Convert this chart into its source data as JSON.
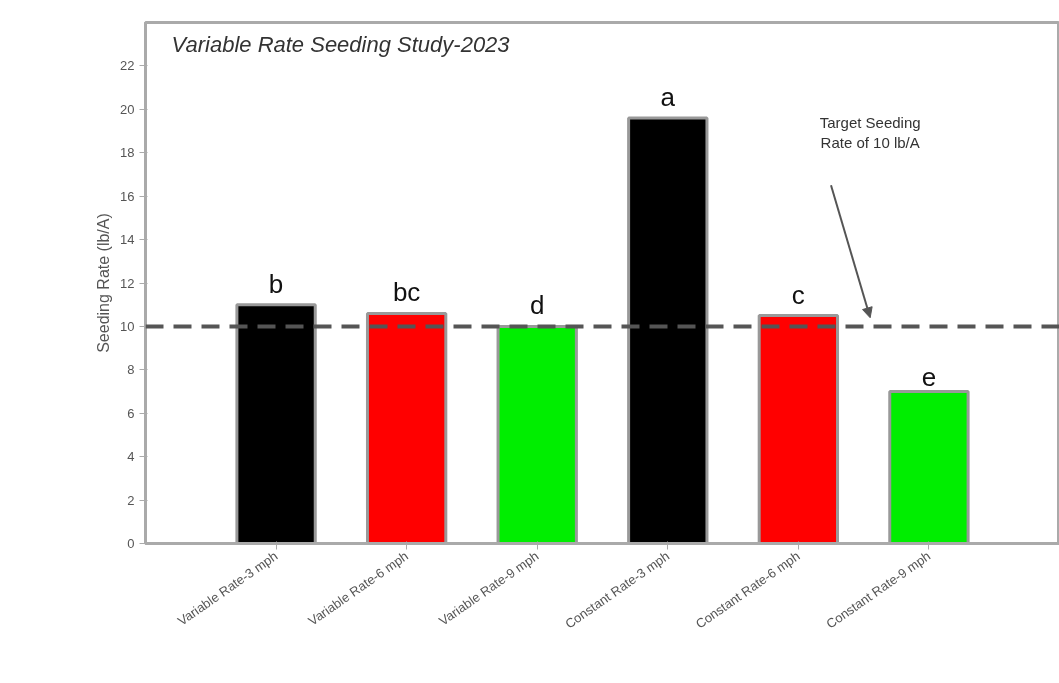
{
  "chart_data": {
    "type": "bar",
    "title": "Variable Rate Seeding Study-2023",
    "ylabel": "Seeding Rate (lb/A)",
    "categories": [
      "Variable Rate-3 mph",
      "Variable Rate-6 mph",
      "Variable Rate-9 mph",
      "Constant Rate-3 mph",
      "Constant Rate-6 mph",
      "Constant Rate-9 mph"
    ],
    "values": [
      11.0,
      10.6,
      10.0,
      19.6,
      10.5,
      7.0
    ],
    "colors": [
      "#000000",
      "#ff0000",
      "#00ee00",
      "#000000",
      "#ff0000",
      "#00ee00"
    ],
    "ylim": [
      0,
      24
    ],
    "yticks": [
      0,
      2,
      4,
      6,
      8,
      10,
      12,
      14,
      16,
      18,
      20,
      22
    ],
    "grid": false,
    "ref_lines": [
      {
        "axis": "y",
        "value": 10,
        "label": "Target Seeding\nRate of 10 lb/A",
        "color": "#555555",
        "line_style": "dashed"
      }
    ],
    "annotations": [
      {
        "text": "b",
        "x": "Variable Rate-3 mph",
        "y": 11.0
      },
      {
        "text": "bc",
        "x": "Variable Rate-6 mph",
        "y": 10.6
      },
      {
        "text": "d",
        "x": "Variable Rate-9 mph",
        "y": 10.0
      },
      {
        "text": "a",
        "x": "Constant Rate-3 mph",
        "y": 19.6
      },
      {
        "text": "c",
        "x": "Constant Rate-6 mph",
        "y": 10.5
      },
      {
        "text": "e",
        "x": "Constant Rate-9 mph",
        "y": 7.0
      }
    ]
  }
}
